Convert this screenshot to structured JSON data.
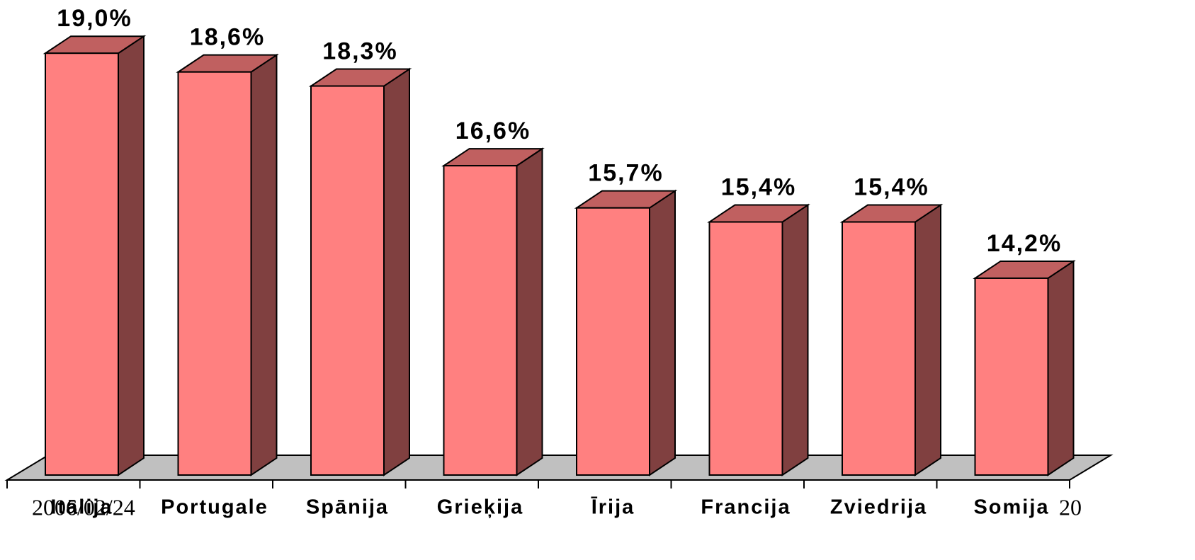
{
  "chart_data": {
    "type": "bar3d",
    "categories": [
      "Itālija",
      "Portugale",
      "Spānija",
      "Grieķija",
      "Īrija",
      "Francija",
      "Zviedrija",
      "Somija"
    ],
    "values": [
      19.0,
      18.6,
      18.3,
      16.6,
      15.7,
      15.4,
      15.4,
      14.2
    ],
    "value_labels": [
      "19,0%",
      "18,6%",
      "18,3%",
      "16,6%",
      "15,7%",
      "15,4%",
      "15,4%",
      "14,2%"
    ],
    "ylim": [
      10,
      20
    ],
    "colors": {
      "front": "#ff8080",
      "side": "#804040",
      "top": "#c06060",
      "floor": "#c0c0c0"
    }
  },
  "footer": {
    "date": "2006/02/24",
    "page": "20"
  }
}
